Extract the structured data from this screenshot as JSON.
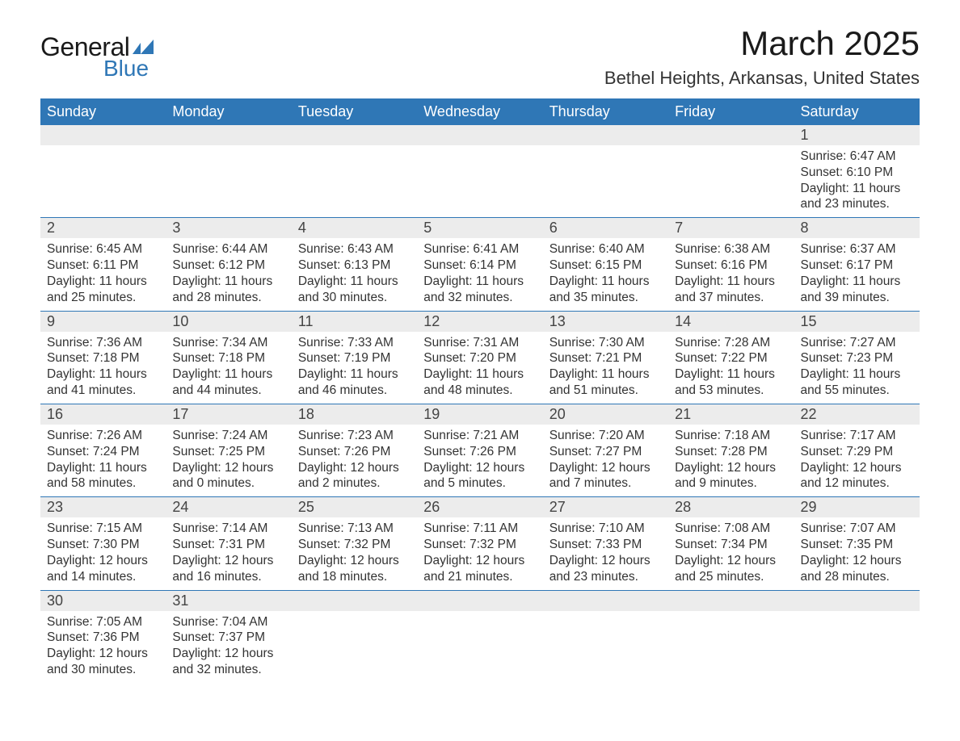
{
  "logo": {
    "text1": "General",
    "text2": "Blue",
    "accent_color": "#2f77b6"
  },
  "title": "March 2025",
  "location": "Bethel Heights, Arkansas, United States",
  "colors": {
    "header_bg": "#2f77b6",
    "header_text": "#ffffff",
    "daynum_bg": "#ececec",
    "row_border": "#2f77b6",
    "body_text": "#333333",
    "page_bg": "#ffffff"
  },
  "fonts": {
    "title_pt": 42,
    "location_pt": 22,
    "header_pt": 18,
    "daynum_pt": 18,
    "cell_pt": 15.5
  },
  "headers": [
    "Sunday",
    "Monday",
    "Tuesday",
    "Wednesday",
    "Thursday",
    "Friday",
    "Saturday"
  ],
  "weeks": [
    [
      null,
      null,
      null,
      null,
      null,
      null,
      {
        "day": "1",
        "sunrise": "6:47 AM",
        "sunset": "6:10 PM",
        "daylight": "11 hours and 23 minutes."
      }
    ],
    [
      {
        "day": "2",
        "sunrise": "6:45 AM",
        "sunset": "6:11 PM",
        "daylight": "11 hours and 25 minutes."
      },
      {
        "day": "3",
        "sunrise": "6:44 AM",
        "sunset": "6:12 PM",
        "daylight": "11 hours and 28 minutes."
      },
      {
        "day": "4",
        "sunrise": "6:43 AM",
        "sunset": "6:13 PM",
        "daylight": "11 hours and 30 minutes."
      },
      {
        "day": "5",
        "sunrise": "6:41 AM",
        "sunset": "6:14 PM",
        "daylight": "11 hours and 32 minutes."
      },
      {
        "day": "6",
        "sunrise": "6:40 AM",
        "sunset": "6:15 PM",
        "daylight": "11 hours and 35 minutes."
      },
      {
        "day": "7",
        "sunrise": "6:38 AM",
        "sunset": "6:16 PM",
        "daylight": "11 hours and 37 minutes."
      },
      {
        "day": "8",
        "sunrise": "6:37 AM",
        "sunset": "6:17 PM",
        "daylight": "11 hours and 39 minutes."
      }
    ],
    [
      {
        "day": "9",
        "sunrise": "7:36 AM",
        "sunset": "7:18 PM",
        "daylight": "11 hours and 41 minutes."
      },
      {
        "day": "10",
        "sunrise": "7:34 AM",
        "sunset": "7:18 PM",
        "daylight": "11 hours and 44 minutes."
      },
      {
        "day": "11",
        "sunrise": "7:33 AM",
        "sunset": "7:19 PM",
        "daylight": "11 hours and 46 minutes."
      },
      {
        "day": "12",
        "sunrise": "7:31 AM",
        "sunset": "7:20 PM",
        "daylight": "11 hours and 48 minutes."
      },
      {
        "day": "13",
        "sunrise": "7:30 AM",
        "sunset": "7:21 PM",
        "daylight": "11 hours and 51 minutes."
      },
      {
        "day": "14",
        "sunrise": "7:28 AM",
        "sunset": "7:22 PM",
        "daylight": "11 hours and 53 minutes."
      },
      {
        "day": "15",
        "sunrise": "7:27 AM",
        "sunset": "7:23 PM",
        "daylight": "11 hours and 55 minutes."
      }
    ],
    [
      {
        "day": "16",
        "sunrise": "7:26 AM",
        "sunset": "7:24 PM",
        "daylight": "11 hours and 58 minutes."
      },
      {
        "day": "17",
        "sunrise": "7:24 AM",
        "sunset": "7:25 PM",
        "daylight": "12 hours and 0 minutes."
      },
      {
        "day": "18",
        "sunrise": "7:23 AM",
        "sunset": "7:26 PM",
        "daylight": "12 hours and 2 minutes."
      },
      {
        "day": "19",
        "sunrise": "7:21 AM",
        "sunset": "7:26 PM",
        "daylight": "12 hours and 5 minutes."
      },
      {
        "day": "20",
        "sunrise": "7:20 AM",
        "sunset": "7:27 PM",
        "daylight": "12 hours and 7 minutes."
      },
      {
        "day": "21",
        "sunrise": "7:18 AM",
        "sunset": "7:28 PM",
        "daylight": "12 hours and 9 minutes."
      },
      {
        "day": "22",
        "sunrise": "7:17 AM",
        "sunset": "7:29 PM",
        "daylight": "12 hours and 12 minutes."
      }
    ],
    [
      {
        "day": "23",
        "sunrise": "7:15 AM",
        "sunset": "7:30 PM",
        "daylight": "12 hours and 14 minutes."
      },
      {
        "day": "24",
        "sunrise": "7:14 AM",
        "sunset": "7:31 PM",
        "daylight": "12 hours and 16 minutes."
      },
      {
        "day": "25",
        "sunrise": "7:13 AM",
        "sunset": "7:32 PM",
        "daylight": "12 hours and 18 minutes."
      },
      {
        "day": "26",
        "sunrise": "7:11 AM",
        "sunset": "7:32 PM",
        "daylight": "12 hours and 21 minutes."
      },
      {
        "day": "27",
        "sunrise": "7:10 AM",
        "sunset": "7:33 PM",
        "daylight": "12 hours and 23 minutes."
      },
      {
        "day": "28",
        "sunrise": "7:08 AM",
        "sunset": "7:34 PM",
        "daylight": "12 hours and 25 minutes."
      },
      {
        "day": "29",
        "sunrise": "7:07 AM",
        "sunset": "7:35 PM",
        "daylight": "12 hours and 28 minutes."
      }
    ],
    [
      {
        "day": "30",
        "sunrise": "7:05 AM",
        "sunset": "7:36 PM",
        "daylight": "12 hours and 30 minutes."
      },
      {
        "day": "31",
        "sunrise": "7:04 AM",
        "sunset": "7:37 PM",
        "daylight": "12 hours and 32 minutes."
      },
      null,
      null,
      null,
      null,
      null
    ]
  ],
  "labels": {
    "sunrise": "Sunrise: ",
    "sunset": "Sunset: ",
    "daylight": "Daylight: "
  }
}
